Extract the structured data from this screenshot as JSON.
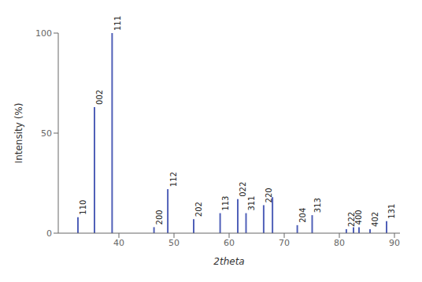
{
  "chart_data": {
    "type": "stem",
    "xlabel": "2theta",
    "ylabel": "Intensity (%)",
    "x": [
      32.5,
      35.5,
      38.7,
      46.3,
      48.8,
      53.5,
      58.3,
      61.5,
      63.0,
      66.2,
      67.8,
      72.3,
      75.0,
      81.2,
      82.5,
      83.5,
      85.5,
      88.5
    ],
    "values": [
      8,
      63,
      100,
      3,
      22,
      7,
      10,
      17,
      10,
      14,
      18,
      4,
      9,
      2,
      3,
      3,
      2,
      6
    ],
    "annotations": [
      {
        "x": 32.5,
        "y": 8,
        "text": "110"
      },
      {
        "x": 35.5,
        "y": 63,
        "text": "002"
      },
      {
        "x": 38.7,
        "y": 100,
        "text": "111"
      },
      {
        "x": 46.3,
        "y": 3,
        "text": "200"
      },
      {
        "x": 48.8,
        "y": 22,
        "text": "112"
      },
      {
        "x": 53.5,
        "y": 7,
        "text": "202"
      },
      {
        "x": 58.3,
        "y": 10,
        "text": "113"
      },
      {
        "x": 61.5,
        "y": 17,
        "text": "022"
      },
      {
        "x": 63.0,
        "y": 10,
        "text": "311"
      },
      {
        "x": 66.2,
        "y": 14,
        "text": "220"
      },
      {
        "x": 72.3,
        "y": 4,
        "text": "204"
      },
      {
        "x": 75.0,
        "y": 9,
        "text": "313"
      },
      {
        "x": 81.2,
        "y": 2,
        "text": "222"
      },
      {
        "x": 82.5,
        "y": 3,
        "text": "400"
      },
      {
        "x": 85.5,
        "y": 2,
        "text": "402"
      },
      {
        "x": 88.5,
        "y": 6,
        "text": "131"
      }
    ],
    "color": "#5060b8",
    "xlim": [
      29,
      91
    ],
    "ylim": [
      0,
      100
    ],
    "xticks": [
      40,
      50,
      60,
      70,
      80,
      90
    ],
    "yticks": [
      0,
      50,
      100
    ],
    "grid": false
  }
}
